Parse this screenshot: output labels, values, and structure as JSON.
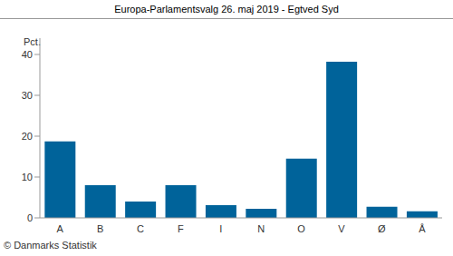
{
  "chart_data": {
    "type": "bar",
    "title": "Europa-Parlamentsvalg 26. maj 2019 - Egtved Syd",
    "y_label": "Pct.",
    "source": "© Danmarks Statistik",
    "categories": [
      "A",
      "B",
      "C",
      "F",
      "I",
      "N",
      "O",
      "V",
      "Ø",
      "Å"
    ],
    "values": [
      18.7,
      8.0,
      4.0,
      8.0,
      3.1,
      2.2,
      14.5,
      38.2,
      2.7,
      1.6
    ],
    "color": "#00639a",
    "ylim": [
      0,
      44
    ],
    "yticks": [
      0,
      10,
      20,
      30,
      40
    ],
    "grid": false
  }
}
